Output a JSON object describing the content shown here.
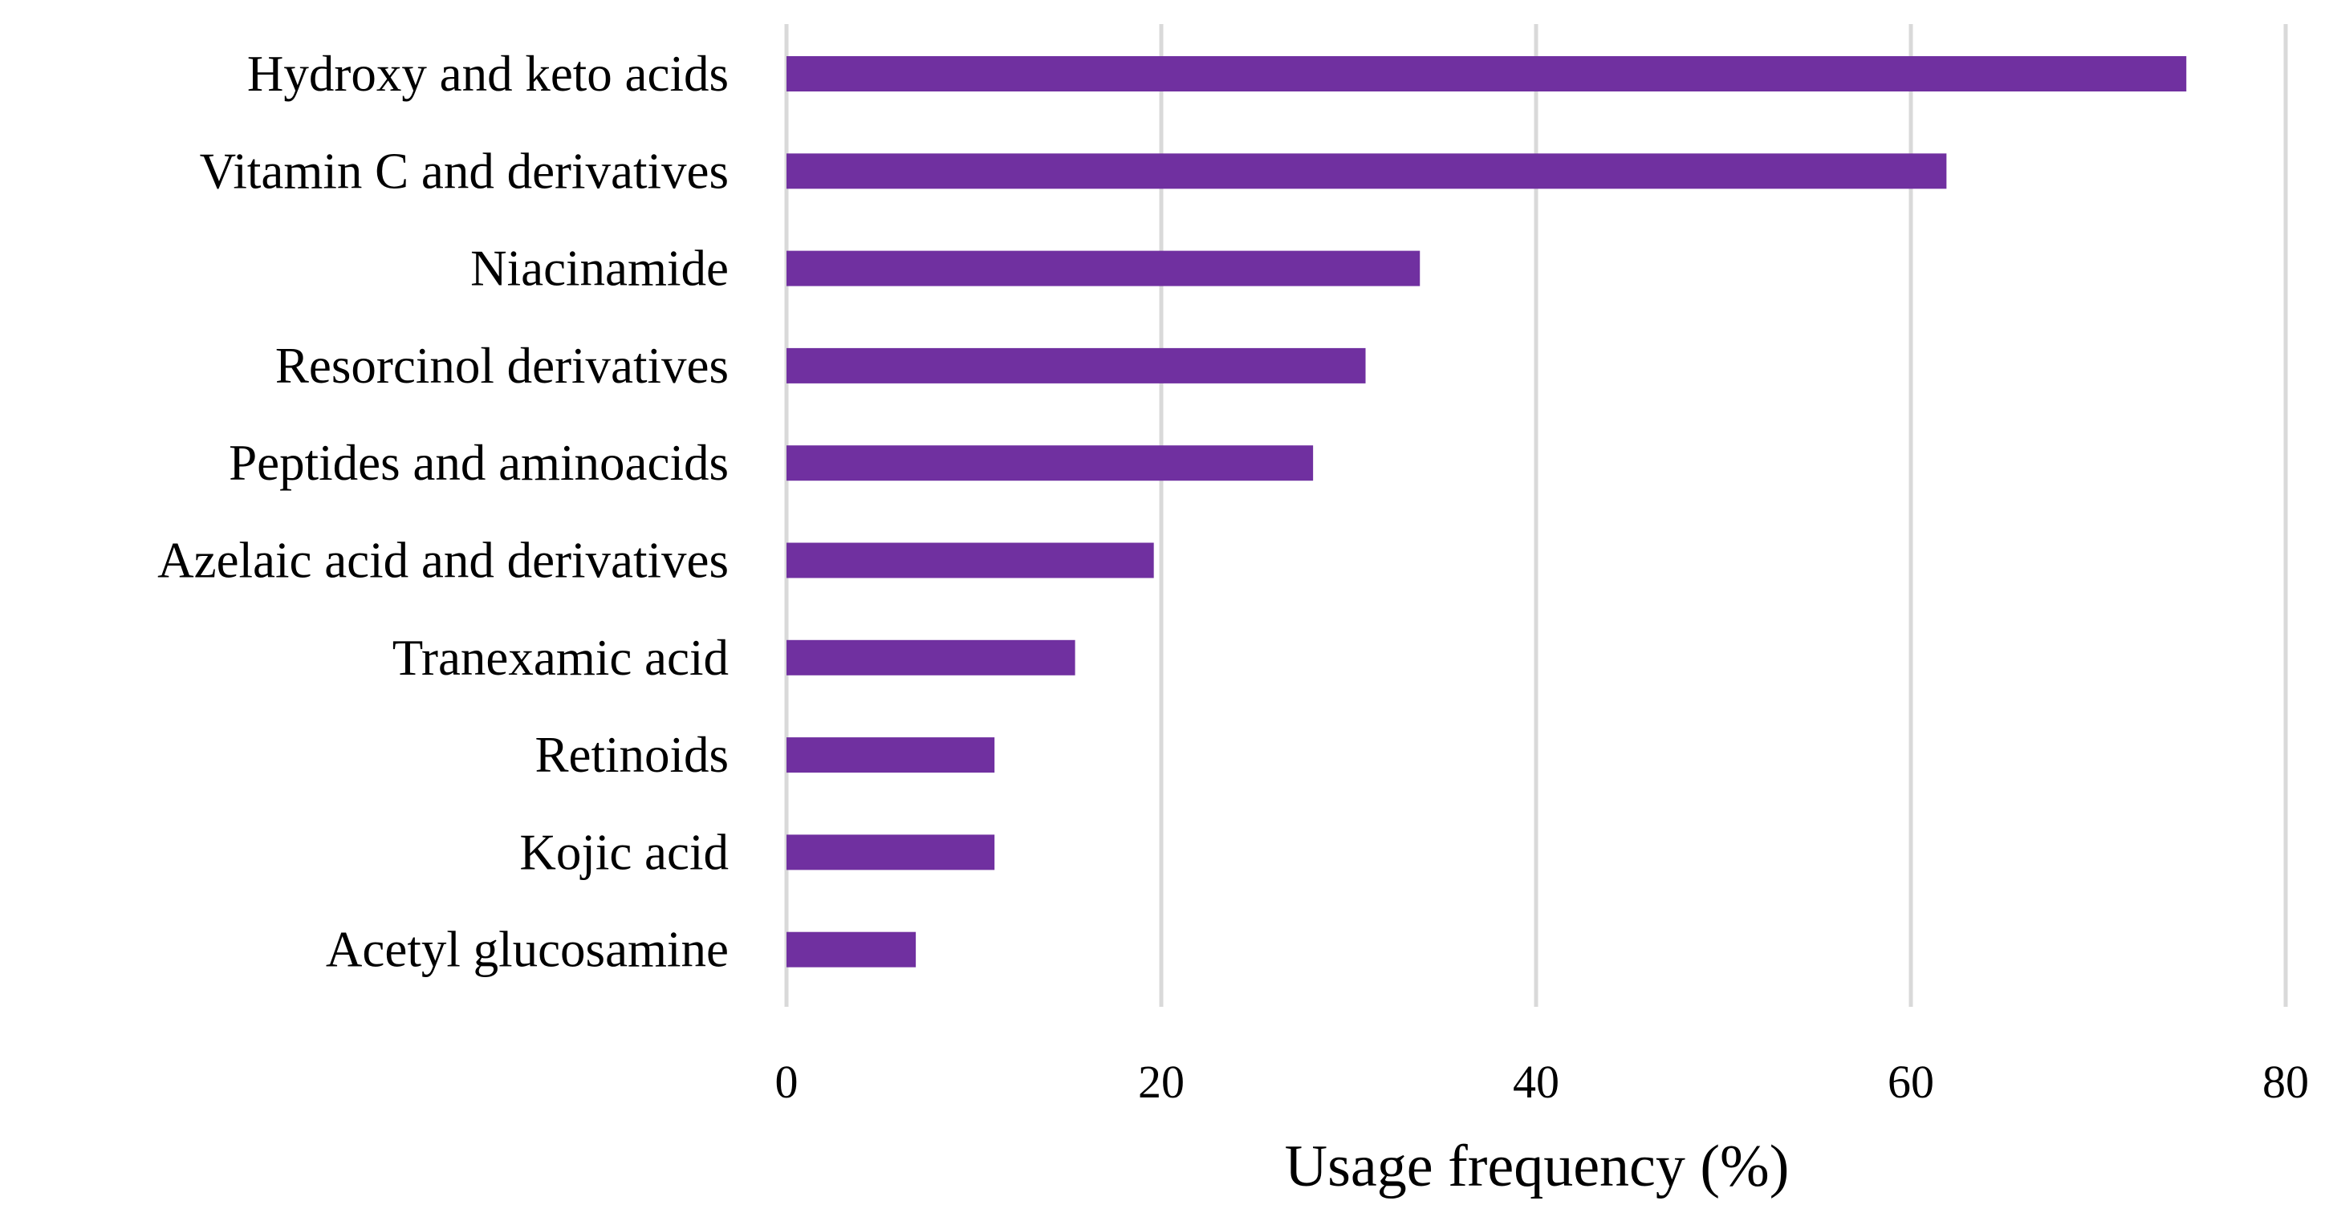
{
  "chart_data": {
    "type": "bar",
    "orientation": "horizontal",
    "title": "",
    "xlabel": "Usage frequency (%)",
    "ylabel": "",
    "categories": [
      "Hydroxy and keto acids",
      "Vitamin C and derivatives",
      "Niacinamide",
      "Resorcinol derivatives",
      "Peptides and aminoacids",
      "Azelaic acid and derivatives",
      "Tranexamic acid",
      "Retinoids",
      "Kojic acid",
      "Acetyl glucosamine"
    ],
    "values": [
      74.7,
      61.9,
      33.8,
      30.9,
      28.1,
      19.6,
      15.4,
      11.1,
      11.1,
      6.9
    ],
    "xlim": [
      0,
      80
    ],
    "xticks": [
      0,
      20,
      40,
      60,
      80
    ],
    "grid": true,
    "legend": "none",
    "bar_color": "#7030a0"
  }
}
